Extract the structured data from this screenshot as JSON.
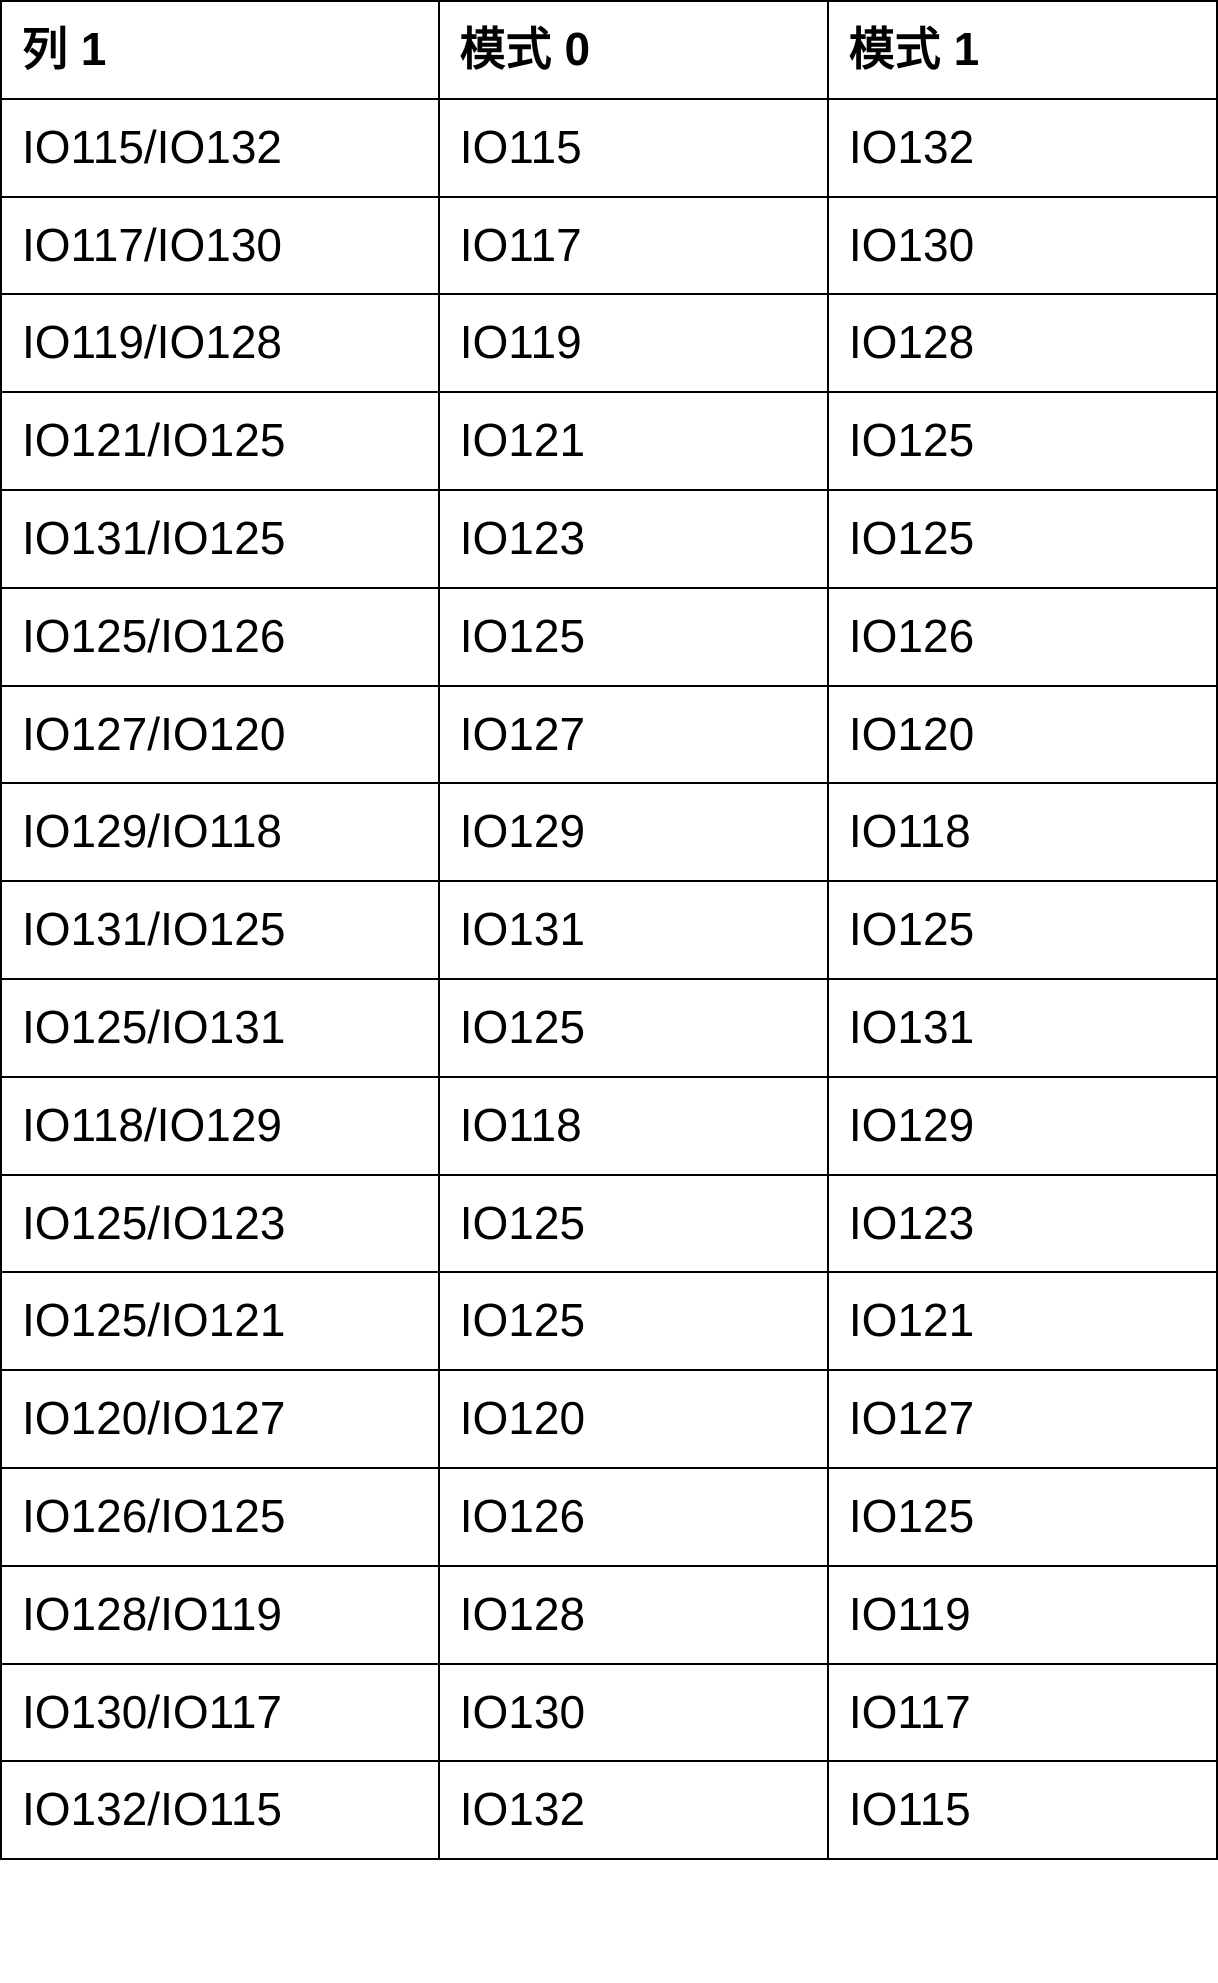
{
  "table": {
    "columns": [
      {
        "label": "列 1"
      },
      {
        "label": "模式 0"
      },
      {
        "label": "模式  1"
      }
    ],
    "rows": [
      [
        "IO115/IO132",
        "IO115",
        "IO132"
      ],
      [
        "IO117/IO130",
        "IO117",
        "IO130"
      ],
      [
        "IO119/IO128",
        "IO119",
        "IO128"
      ],
      [
        "IO121/IO125",
        "IO121",
        "IO125"
      ],
      [
        "IO131/IO125",
        "IO123",
        "IO125"
      ],
      [
        "IO125/IO126",
        "IO125",
        "IO126"
      ],
      [
        "IO127/IO120",
        "IO127",
        "IO120"
      ],
      [
        "IO129/IO118",
        "IO129",
        "IO118"
      ],
      [
        "IO131/IO125",
        "IO131",
        "IO125"
      ],
      [
        "IO125/IO131",
        "IO125",
        "IO131"
      ],
      [
        "IO118/IO129",
        "IO118",
        "IO129"
      ],
      [
        "IO125/IO123",
        "IO125",
        "IO123"
      ],
      [
        "IO125/IO121",
        "IO125",
        "IO121"
      ],
      [
        "IO120/IO127",
        "IO120",
        "IO127"
      ],
      [
        "IO126/IO125",
        "IO126",
        "IO125"
      ],
      [
        "IO128/IO119",
        "IO128",
        "IO119"
      ],
      [
        "IO130/IO117",
        "IO130",
        "IO117"
      ],
      [
        "IO132/IO115",
        "IO132",
        "IO115"
      ]
    ],
    "border_color": "#000000",
    "background_color": "#ffffff",
    "text_color": "#000000",
    "header_fontsize": 46,
    "cell_fontsize": 46,
    "header_fontweight": "bold",
    "cell_fontweight": "normal",
    "column_widths_pct": [
      36,
      32,
      32
    ]
  }
}
